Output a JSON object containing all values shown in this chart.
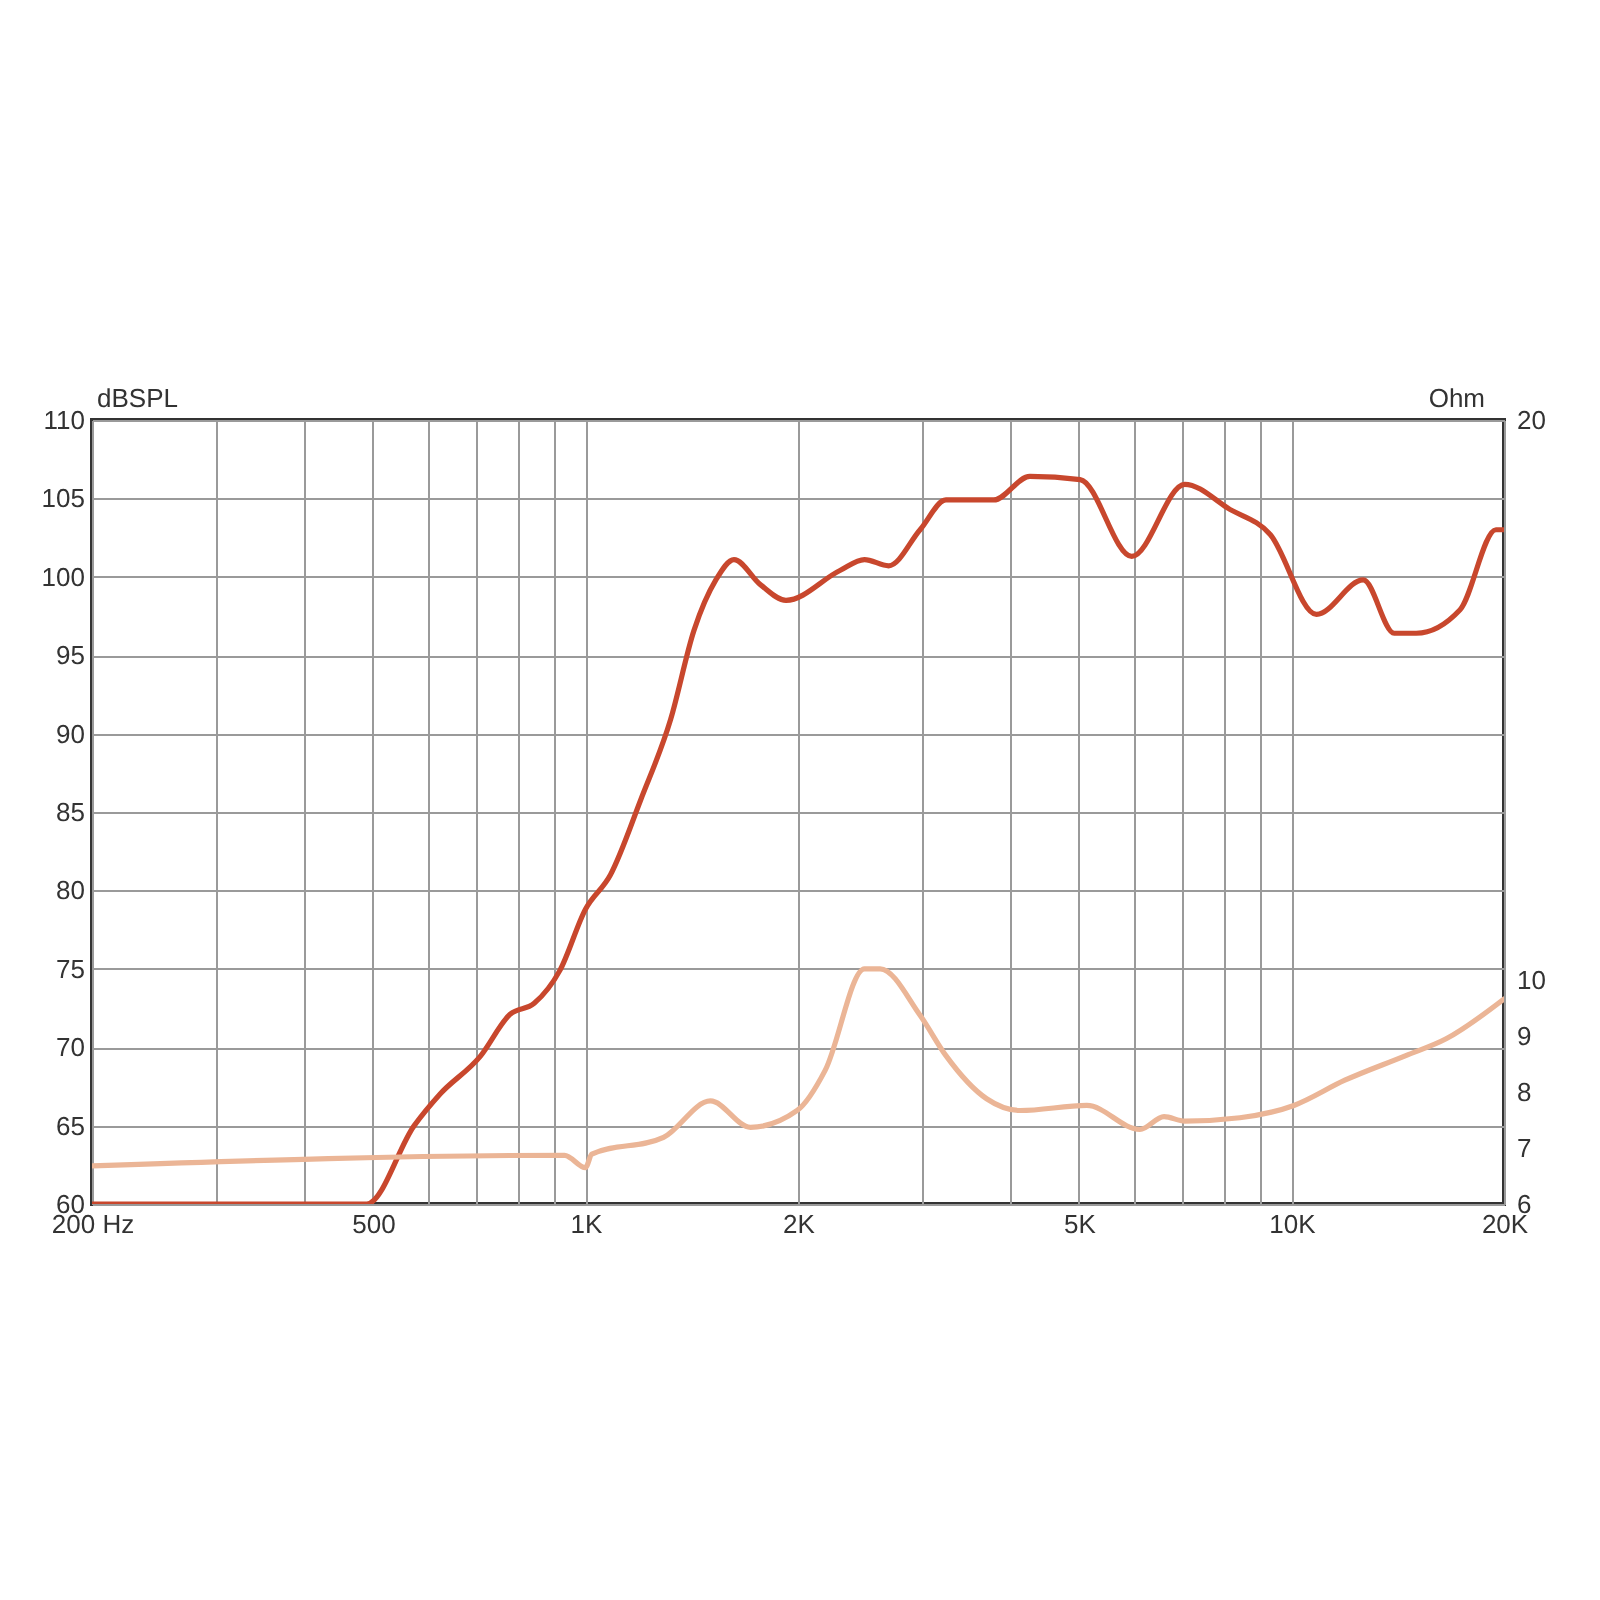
{
  "chart_data": {
    "type": "line",
    "ylabel": "dBSPL",
    "y2label": "Ohm",
    "log": "x",
    "grid": true,
    "xlim": [
      200,
      20000
    ],
    "xticks": [
      {
        "value": 200,
        "label": "200 Hz"
      },
      {
        "value": 300,
        "label": null
      },
      {
        "value": 400,
        "label": null
      },
      500,
      {
        "value": 600,
        "label": null
      },
      {
        "value": 700,
        "label": null
      },
      {
        "value": 800,
        "label": null
      },
      {
        "value": 900,
        "label": null
      },
      {
        "value": 1000,
        "label": "1K"
      },
      {
        "value": 2000,
        "label": "2K"
      },
      {
        "value": 3000,
        "label": null
      },
      {
        "value": 4000,
        "label": null
      },
      {
        "value": 5000,
        "label": "5K"
      },
      {
        "value": 6000,
        "label": null
      },
      {
        "value": 7000,
        "label": null
      },
      {
        "value": 8000,
        "label": null
      },
      {
        "value": 9000,
        "label": null
      },
      {
        "value": 10000,
        "label": "10K"
      },
      {
        "value": 20000,
        "label": "20K"
      }
    ],
    "ylim": [
      60,
      110
    ],
    "yticks": [
      60,
      65,
      70,
      75,
      80,
      85,
      90,
      95,
      100,
      105,
      110
    ],
    "y2lim": [
      6,
      20
    ],
    "y2ticks": [
      6,
      7,
      8,
      9,
      10,
      20
    ],
    "series": [
      {
        "color": "#c8472d",
        "x": [
          200,
          490,
          572,
          622,
          709,
          782,
          846,
          920,
          1000,
          1085,
          1198,
          1320,
          1425,
          1530,
          1623,
          1769,
          1923,
          2293,
          2484,
          2688,
          2978,
          3240,
          3785,
          4260,
          5020,
          5940,
          7060,
          8180,
          9330,
          10850,
          12640,
          13980,
          15020,
          17330,
          19480,
          20000
        ],
        "values": [
          60,
          60,
          65,
          67,
          69.4,
          72.1,
          72.8,
          74.9,
          78.8,
          81,
          85.8,
          90.9,
          96.6,
          99.8,
          101.1,
          99.5,
          98.5,
          100.4,
          101.1,
          100.7,
          103,
          104.9,
          104.9,
          106.4,
          106.2,
          101.3,
          105.9,
          104.3,
          102.7,
          97.6,
          99.8,
          96.4,
          96.4,
          97.9,
          103,
          103
        ]
      },
      {
        "color": "#ebb596",
        "axis": "y2",
        "x": [
          200,
          934,
          1000,
          1021,
          1290,
          1503,
          1713,
          1995,
          2186,
          2484,
          2614,
          2978,
          3240,
          3700,
          4130,
          5130,
          6100,
          6600,
          7060,
          8450,
          10080,
          11900,
          14520,
          16560,
          20000
        ],
        "values": [
          6.68,
          6.87,
          6.65,
          6.89,
          7.19,
          7.84,
          7.37,
          7.67,
          8.39,
          10.2,
          10.2,
          9.37,
          8.65,
          7.88,
          7.67,
          7.76,
          7.33,
          7.56,
          7.48,
          7.54,
          7.76,
          8.21,
          8.65,
          8.95,
          9.66
        ]
      }
    ]
  }
}
